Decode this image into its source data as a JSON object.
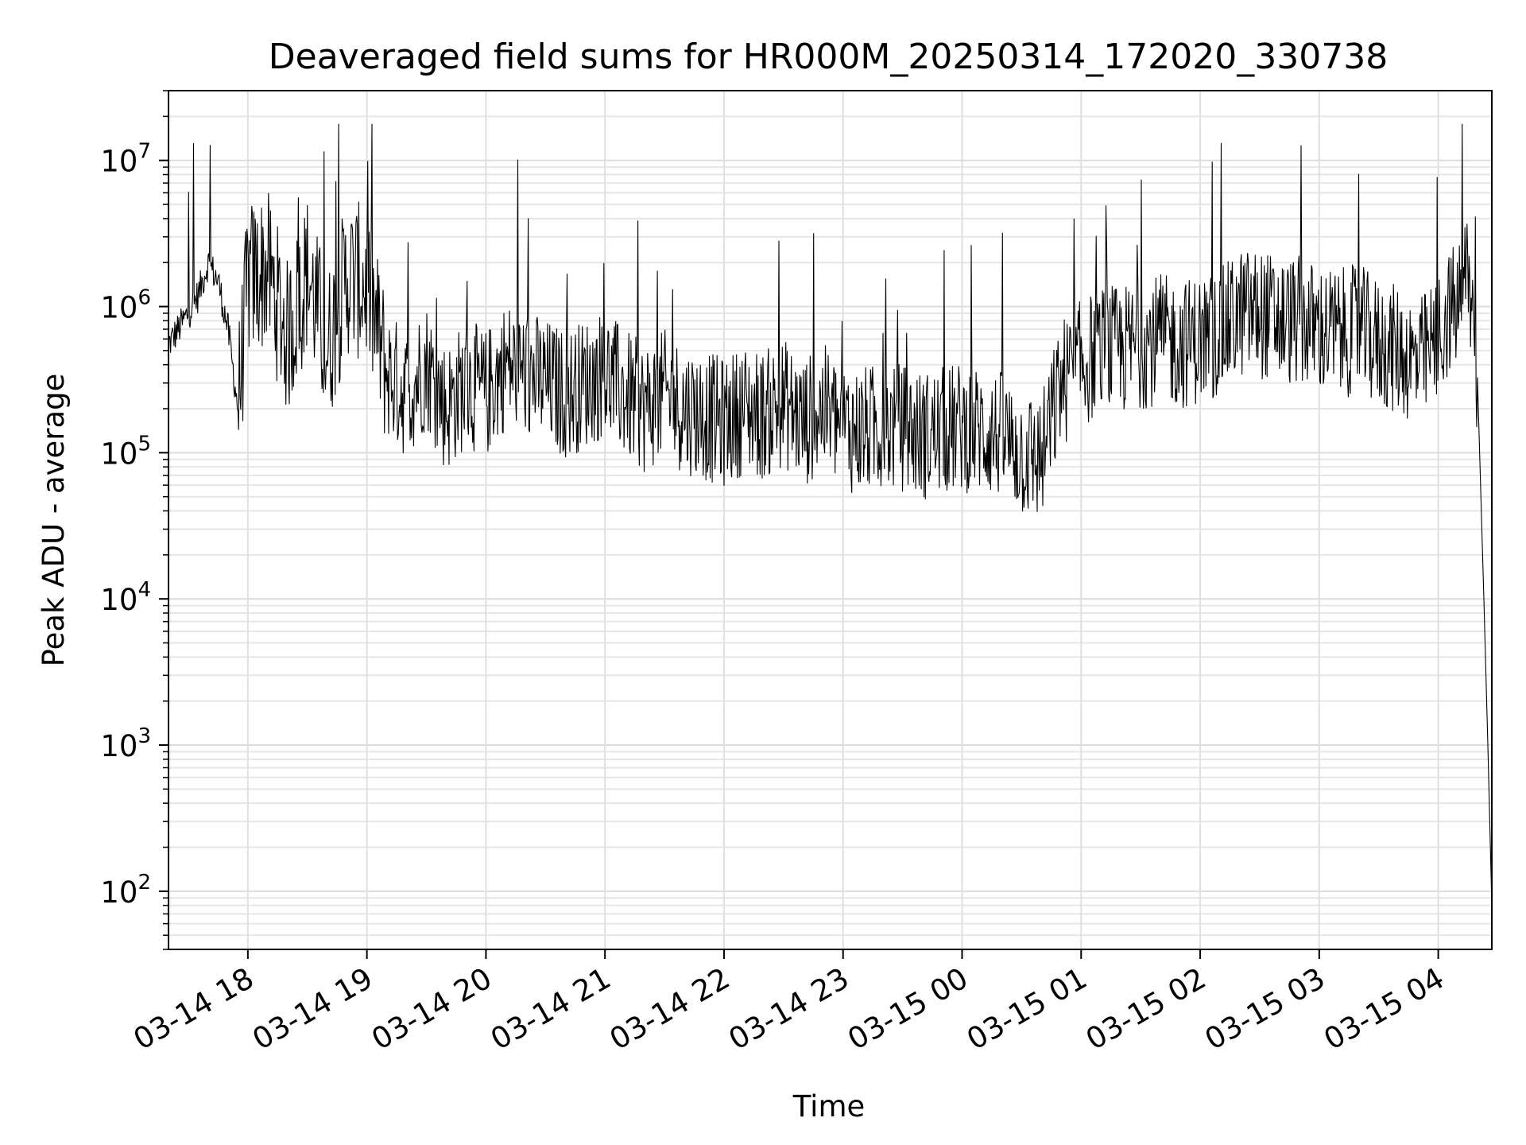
{
  "chart_data": {
    "type": "line",
    "title": "Deaveraged field sums for HR000M_20250314_172020_330738",
    "xlabel": "Time",
    "ylabel": "Peak ADU - average",
    "yscale": "log",
    "xlim": [
      "03-14 17:20",
      "03-15 04:27"
    ],
    "ylim": [
      40,
      30000000
    ],
    "grid": "on (major and minor)",
    "legend": "none",
    "line_color": "#000000",
    "x_ticks": [
      {
        "label": "03-14 18",
        "time": "03-14 18:00"
      },
      {
        "label": "03-14 19",
        "time": "03-14 19:00"
      },
      {
        "label": "03-14 20",
        "time": "03-14 20:00"
      },
      {
        "label": "03-14 21",
        "time": "03-14 21:00"
      },
      {
        "label": "03-14 22",
        "time": "03-14 22:00"
      },
      {
        "label": "03-14 23",
        "time": "03-14 23:00"
      },
      {
        "label": "03-15 00",
        "time": "03-15 00:00"
      },
      {
        "label": "03-15 01",
        "time": "03-15 01:00"
      },
      {
        "label": "03-15 02",
        "time": "03-15 02:00"
      },
      {
        "label": "03-15 03",
        "time": "03-15 03:00"
      },
      {
        "label": "03-15 04",
        "time": "03-15 04:00"
      }
    ],
    "y_ticks": [
      {
        "base": "10",
        "exp": "2",
        "value": 100
      },
      {
        "base": "10",
        "exp": "3",
        "value": 1000
      },
      {
        "base": "10",
        "exp": "4",
        "value": 10000
      },
      {
        "base": "10",
        "exp": "5",
        "value": 100000
      },
      {
        "base": "10",
        "exp": "6",
        "value": 1000000
      },
      {
        "base": "10",
        "exp": "7",
        "value": 10000000
      }
    ],
    "series": [
      {
        "color": "#000000",
        "x": [
          "03-14 17:20",
          "03-14 17:25",
          "03-14 17:30",
          "03-14 17:35",
          "03-14 17:40",
          "03-14 17:45",
          "03-14 17:50",
          "03-14 17:55",
          "03-14 18:00",
          "03-14 18:10",
          "03-14 18:20",
          "03-14 18:30",
          "03-14 18:40",
          "03-14 18:50",
          "03-14 19:00",
          "03-14 19:10",
          "03-14 19:20",
          "03-14 19:30",
          "03-14 19:40",
          "03-14 19:50",
          "03-14 20:00",
          "03-14 20:10",
          "03-14 20:20",
          "03-14 20:30",
          "03-14 20:40",
          "03-14 20:50",
          "03-14 21:00",
          "03-14 21:10",
          "03-14 21:20",
          "03-14 21:30",
          "03-14 21:40",
          "03-14 21:50",
          "03-14 22:00",
          "03-14 22:10",
          "03-14 22:20",
          "03-14 22:30",
          "03-14 22:40",
          "03-14 22:50",
          "03-14 23:00",
          "03-14 23:10",
          "03-14 23:20",
          "03-14 23:30",
          "03-14 23:40",
          "03-14 23:50",
          "03-15 00:00",
          "03-15 00:10",
          "03-15 00:20",
          "03-15 00:30",
          "03-15 00:40",
          "03-15 00:50",
          "03-15 01:00",
          "03-15 01:10",
          "03-15 01:20",
          "03-15 01:30",
          "03-15 01:40",
          "03-15 01:50",
          "03-15 02:00",
          "03-15 02:10",
          "03-15 02:20",
          "03-15 02:30",
          "03-15 02:40",
          "03-15 02:50",
          "03-15 03:00",
          "03-15 03:10",
          "03-15 03:20",
          "03-15 03:30",
          "03-15 03:40",
          "03-15 03:50",
          "03-15 04:00",
          "03-15 04:05",
          "03-15 04:10",
          "03-15 04:15",
          "03-15 04:20",
          "03-15 04:23",
          "03-15 04:25",
          "03-15 04:27"
        ],
        "y": [
          550000,
          700000,
          900000,
          1200000,
          2000000,
          1500000,
          700000,
          200000,
          1500000,
          1800000,
          600000,
          1700000,
          500000,
          1600000,
          1400000,
          350000,
          250000,
          400000,
          200000,
          300000,
          250000,
          400000,
          350000,
          300000,
          250000,
          300000,
          350000,
          250000,
          200000,
          250000,
          200000,
          180000,
          160000,
          200000,
          180000,
          220000,
          160000,
          200000,
          150000,
          140000,
          150000,
          150000,
          130000,
          140000,
          150000,
          140000,
          130000,
          100000,
          90000,
          300000,
          400000,
          500000,
          500000,
          550000,
          600000,
          550000,
          600000,
          650000,
          900000,
          900000,
          800000,
          800000,
          700000,
          650000,
          700000,
          550000,
          500000,
          400000,
          600000,
          900000,
          1000000,
          1900000,
          300000,
          10000,
          1000,
          80
        ]
      }
    ]
  }
}
